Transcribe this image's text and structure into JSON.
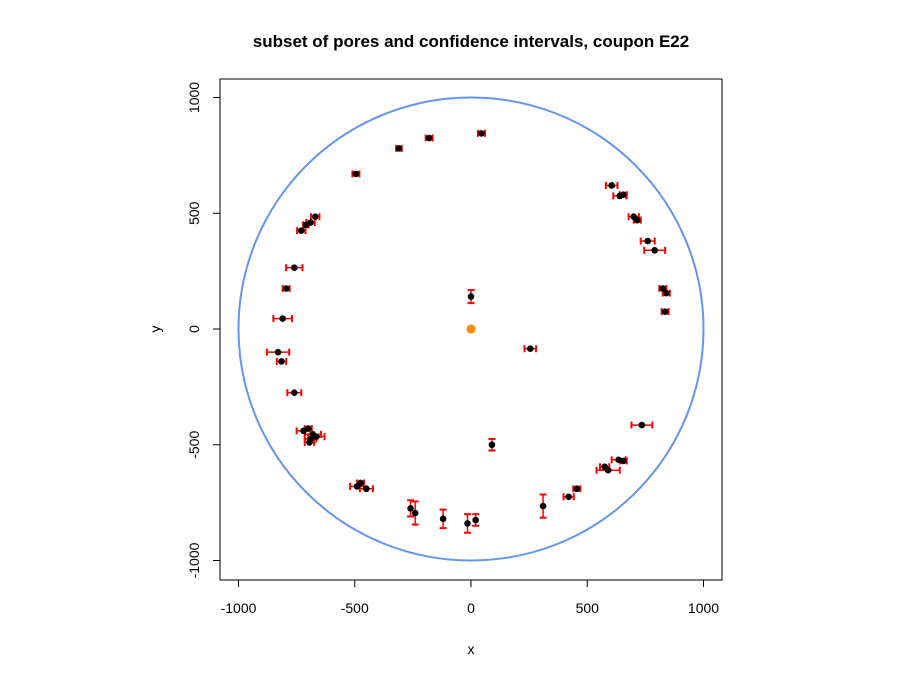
{
  "chart_data": {
    "type": "scatter",
    "title": "subset of pores and confidence intervals, coupon E22",
    "xlabel": "x",
    "ylabel": "y",
    "xlim": [
      -1000,
      1000
    ],
    "ylim": [
      -1000,
      1000
    ],
    "x_ticks": [
      -1000,
      -500,
      0,
      500,
      1000
    ],
    "y_ticks": [
      -1000,
      -500,
      0,
      500,
      1000
    ],
    "x_tick_labels": [
      "-1000",
      "-500",
      "0",
      "500",
      "1000"
    ],
    "y_tick_labels": [
      "-1000",
      "-500",
      "0",
      "500",
      "1000"
    ],
    "grid": false,
    "legend": "none",
    "colors": {
      "circle": "#6495ED",
      "points": "#000000",
      "error_bars": "#FF0000",
      "center": "#FF8C00"
    },
    "boundary_circle": {
      "center": [
        0,
        0
      ],
      "radius": 1000
    },
    "center_point": [
      0,
      0
    ],
    "points": [
      {
        "x": 45,
        "y": 845,
        "ex": 15
      },
      {
        "x": -180,
        "y": 825,
        "ex": 15
      },
      {
        "x": -310,
        "y": 780,
        "ex": 12
      },
      {
        "x": -495,
        "y": 670,
        "ex": 15
      },
      {
        "x": 605,
        "y": 620,
        "ex": 25
      },
      {
        "x": 640,
        "y": 575,
        "ex": 28
      },
      {
        "x": 655,
        "y": 580,
        "ex": 15
      },
      {
        "x": 700,
        "y": 485,
        "ex": 22
      },
      {
        "x": 715,
        "y": 470,
        "ex": 15
      },
      {
        "x": -670,
        "y": 485,
        "ex": 18
      },
      {
        "x": -690,
        "y": 460,
        "ex": 18
      },
      {
        "x": -710,
        "y": 450,
        "ex": 12
      },
      {
        "x": -730,
        "y": 425,
        "ex": 18
      },
      {
        "x": 760,
        "y": 380,
        "ex": 30
      },
      {
        "x": 790,
        "y": 340,
        "ex": 45
      },
      {
        "x": -760,
        "y": 265,
        "ex": 35
      },
      {
        "x": -795,
        "y": 175,
        "ex": 15
      },
      {
        "x": 825,
        "y": 175,
        "ex": 15
      },
      {
        "x": 840,
        "y": 155,
        "ex": 15
      },
      {
        "x": 0,
        "y": 140,
        "ey": 28
      },
      {
        "x": -810,
        "y": 45,
        "ex": 40
      },
      {
        "x": 835,
        "y": 75,
        "ex": 15
      },
      {
        "x": -830,
        "y": -100,
        "ex": 48
      },
      {
        "x": -815,
        "y": -140,
        "ex": 20
      },
      {
        "x": 255,
        "y": -85,
        "ex": 25
      },
      {
        "x": -760,
        "y": -275,
        "ex": 30
      },
      {
        "x": 735,
        "y": -415,
        "ex": 45
      },
      {
        "x": -720,
        "y": -440,
        "ex": 30
      },
      {
        "x": -700,
        "y": -430,
        "ex": 15
      },
      {
        "x": -680,
        "y": -455,
        "ex": 35
      },
      {
        "x": -665,
        "y": -465,
        "ex": 35
      },
      {
        "x": -690,
        "y": -475,
        "ex": 25
      },
      {
        "x": -695,
        "y": -490,
        "ex": 20
      },
      {
        "x": 90,
        "y": -500,
        "ey": 25
      },
      {
        "x": 635,
        "y": -565,
        "ex": 30
      },
      {
        "x": 655,
        "y": -570,
        "ex": 15
      },
      {
        "x": 575,
        "y": -595,
        "ex": 20
      },
      {
        "x": 590,
        "y": -610,
        "ex": 50
      },
      {
        "x": -490,
        "y": -680,
        "ex": 30
      },
      {
        "x": -450,
        "y": -690,
        "ex": 28
      },
      {
        "x": -475,
        "y": -665,
        "ex": 15
      },
      {
        "x": 455,
        "y": -690,
        "ex": 15
      },
      {
        "x": 420,
        "y": -725,
        "ex": 22
      },
      {
        "x": 310,
        "y": -765,
        "ey": 50
      },
      {
        "x": -260,
        "y": -775,
        "ey": 35
      },
      {
        "x": -240,
        "y": -795,
        "ey": 50
      },
      {
        "x": -120,
        "y": -820,
        "ey": 40
      },
      {
        "x": 20,
        "y": -825,
        "ey": 25
      },
      {
        "x": -15,
        "y": -840,
        "ey": 40
      }
    ]
  }
}
